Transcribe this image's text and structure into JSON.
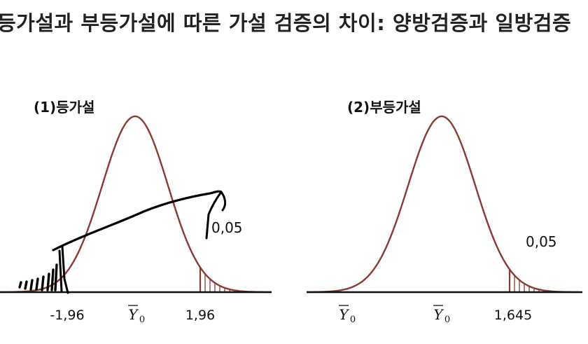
{
  "title": "등가설과 부등가설에 따른 가설 검증의 차이: 양방검증과 일방검증",
  "panels": [
    {
      "label": "(1)등가설",
      "tick_labels": [
        "-1,96",
        "1,96"
      ],
      "mean_label": "Ȳ0",
      "tail_probability": "0,05"
    },
    {
      "label": "(2)부등가설",
      "tick_labels": [
        "1,645"
      ],
      "mean_label": "Ȳ0",
      "left_label": "Ȳ0",
      "tail_probability": "0,05"
    }
  ],
  "colors": {
    "curve": "#8b3a32",
    "axis": "#111111",
    "hatch": "#8b3a32",
    "ink": "#000000"
  }
}
